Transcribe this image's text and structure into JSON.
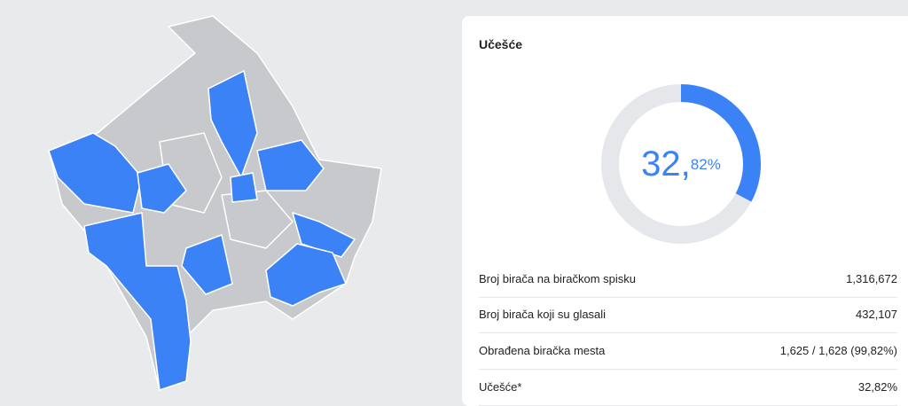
{
  "card": {
    "title": "Učešće",
    "donut": {
      "whole": "32,",
      "fraction": "82%",
      "value": 32.82,
      "max": 100
    },
    "table": {
      "rows": [
        [
          "Broj birača na biračkom spisku",
          "1,316,672"
        ],
        [
          "Broj birača koji su glasali",
          "432,107"
        ],
        [
          "Obrađena biračka mesta",
          "1,625 / 1,628 (99,82%)"
        ],
        [
          "Učešće*",
          "32,82%"
        ]
      ]
    }
  }
}
